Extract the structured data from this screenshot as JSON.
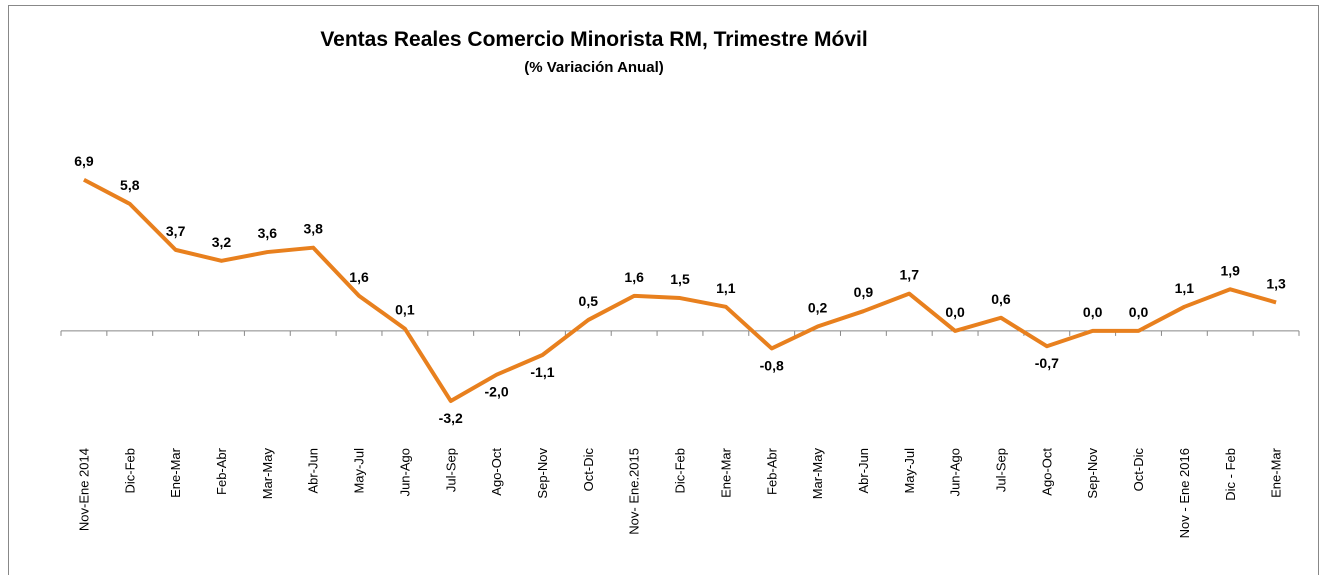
{
  "chart_data": {
    "type": "line",
    "title": "Ventas Reales Comercio Minorista RM, Trimestre Móvil",
    "subtitle": "(% Variación Anual)",
    "categories": [
      "Nov-Ene 2014",
      "Dic-Feb",
      "Ene-Mar",
      "Feb-Abr",
      "Mar-May",
      "Abr-Jun",
      "May-Jul",
      "Jun-Ago",
      "Jul-Sep",
      "Ago-Oct",
      "Sep-Nov",
      "Oct-Dic",
      "Nov- Ene.2015",
      "Dic-Feb",
      "Ene-Mar",
      "Feb-Abr",
      "Mar-May",
      "Abr-Jun",
      "May-Jul",
      "Jun-Ago",
      "Jul-Sep",
      "Ago-Oct",
      "Sep-Nov",
      "Oct-Dic",
      "Nov - Ene 2016",
      "Dic - Feb",
      "Ene-Mar"
    ],
    "values": [
      6.9,
      5.8,
      3.7,
      3.2,
      3.6,
      3.8,
      1.6,
      0.1,
      -3.2,
      -2.0,
      -1.1,
      0.5,
      1.6,
      1.5,
      1.1,
      -0.8,
      0.2,
      0.9,
      1.7,
      0.0,
      0.6,
      -0.7,
      0.0,
      0.0,
      1.1,
      1.9,
      1.3
    ],
    "value_labels": [
      "6,9",
      "5,8",
      "3,7",
      "3,2",
      "3,6",
      "3,8",
      "1,6",
      "0,1",
      "-3,2",
      "-2,0",
      "-1,1",
      "0,5",
      "1,6",
      "1,5",
      "1,1",
      "-0,8",
      "0,2",
      "0,9",
      "1,7",
      "0,0",
      "0,6",
      "-0,7",
      "0,0",
      "0,0",
      "1,1",
      "1,9",
      "1,3"
    ],
    "color": "#e8801e",
    "ylim": [
      -4,
      11
    ]
  }
}
